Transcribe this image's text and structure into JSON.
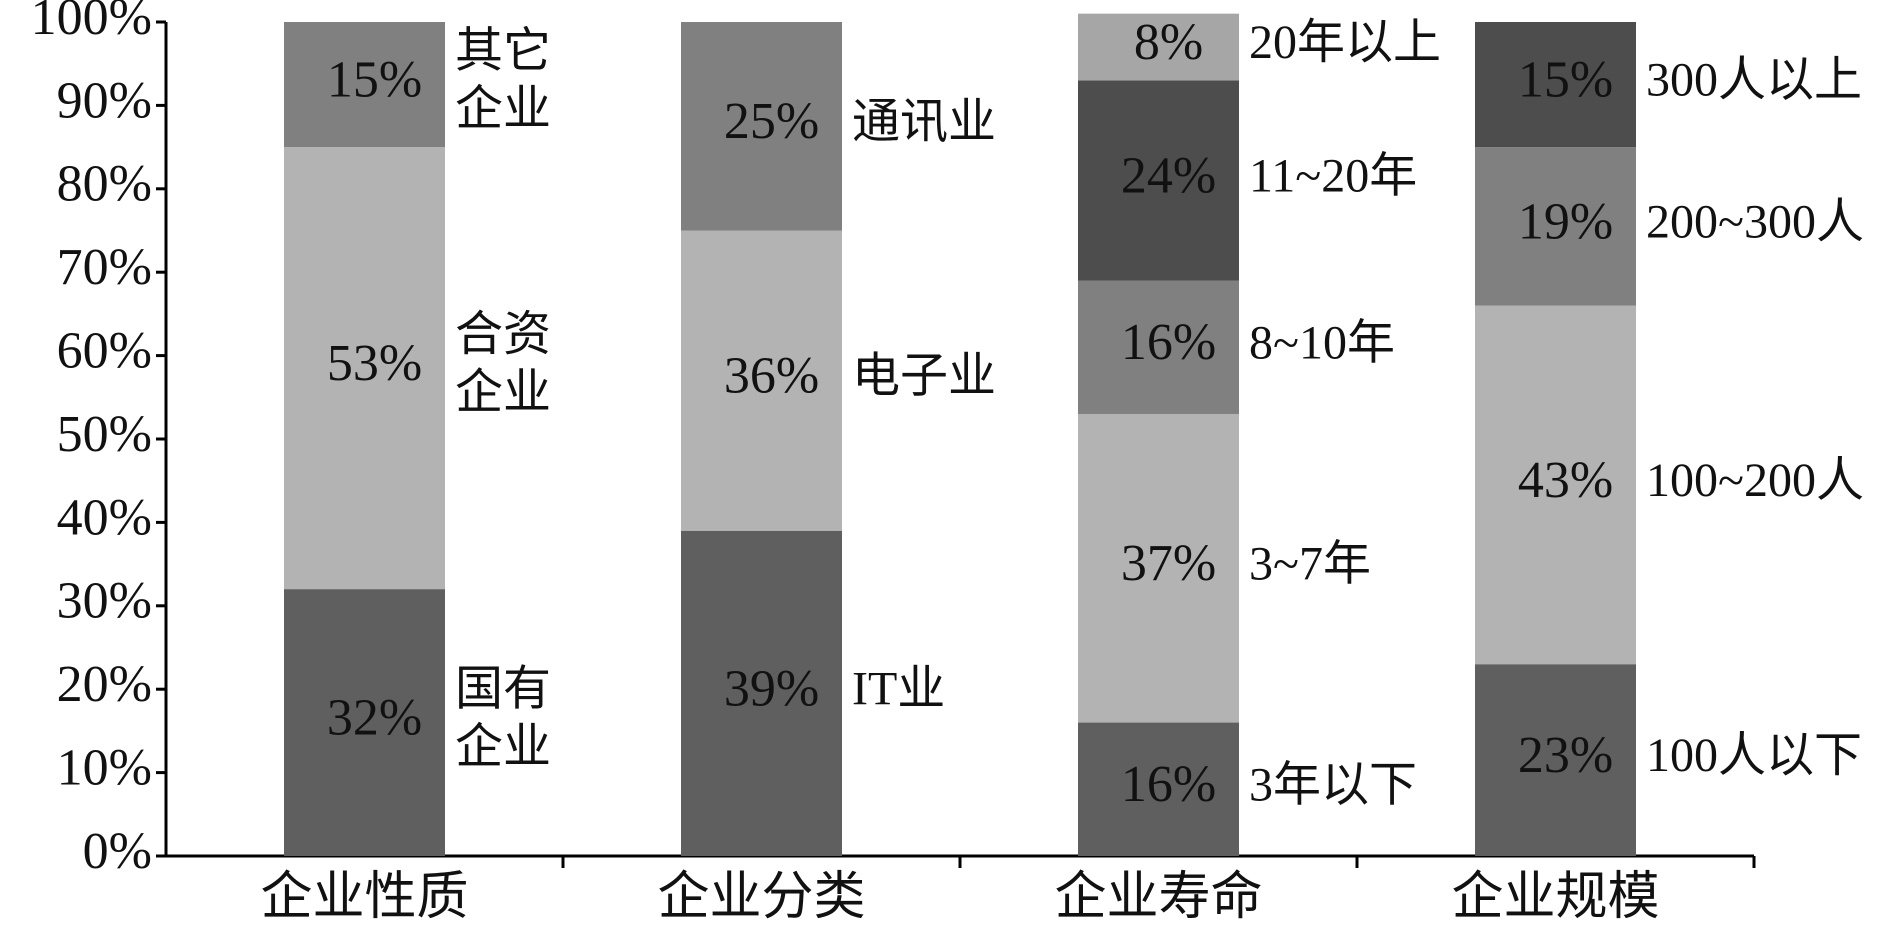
{
  "chart_data": {
    "type": "stacked-bar",
    "ylim": [
      0,
      100
    ],
    "yticks": [
      {
        "value": 0,
        "label": "0%"
      },
      {
        "value": 10,
        "label": "10%"
      },
      {
        "value": 20,
        "label": "20%"
      },
      {
        "value": 30,
        "label": "30%"
      },
      {
        "value": 40,
        "label": "40%"
      },
      {
        "value": 50,
        "label": "50%"
      },
      {
        "value": 60,
        "label": "60%"
      },
      {
        "value": 70,
        "label": "70%"
      },
      {
        "value": 80,
        "label": "80%"
      },
      {
        "value": 90,
        "label": "90%"
      },
      {
        "value": 100,
        "label": "100%"
      }
    ],
    "groups": [
      {
        "category": "企业性质",
        "names": [
          "国有\n企业",
          "合资\n企业",
          "其它\n企业"
        ],
        "values": [
          32,
          53,
          15
        ],
        "value_labels": [
          "32%",
          "53%",
          "15%"
        ],
        "colors": [
          "#5f5f5f",
          "#b3b3b3",
          "#808080"
        ]
      },
      {
        "category": "企业分类",
        "names": [
          "IT业",
          "电子业",
          "通讯业"
        ],
        "values": [
          39,
          36,
          25
        ],
        "value_labels": [
          "39%",
          "36%",
          "25%"
        ],
        "colors": [
          "#5f5f5f",
          "#b3b3b3",
          "#808080"
        ]
      },
      {
        "category": "企业寿命",
        "names": [
          "3年以下",
          "3~7年",
          "8~10年",
          "11~20年",
          "20年以上"
        ],
        "values": [
          16,
          37,
          16,
          24,
          8
        ],
        "value_labels": [
          "16%",
          "37%",
          "16%",
          "24%",
          "8%"
        ],
        "colors": [
          "#5f5f5f",
          "#b3b3b3",
          "#808080",
          "#4d4d4d",
          "#a6a6a6"
        ]
      },
      {
        "category": "企业规模",
        "names": [
          "100人以下",
          "100~200人",
          "200~300人",
          "300人以上"
        ],
        "values": [
          23,
          43,
          19,
          15
        ],
        "value_labels": [
          "23%",
          "43%",
          "19%",
          "15%"
        ],
        "colors": [
          "#5f5f5f",
          "#b3b3b3",
          "#808080",
          "#4d4d4d"
        ]
      }
    ]
  }
}
